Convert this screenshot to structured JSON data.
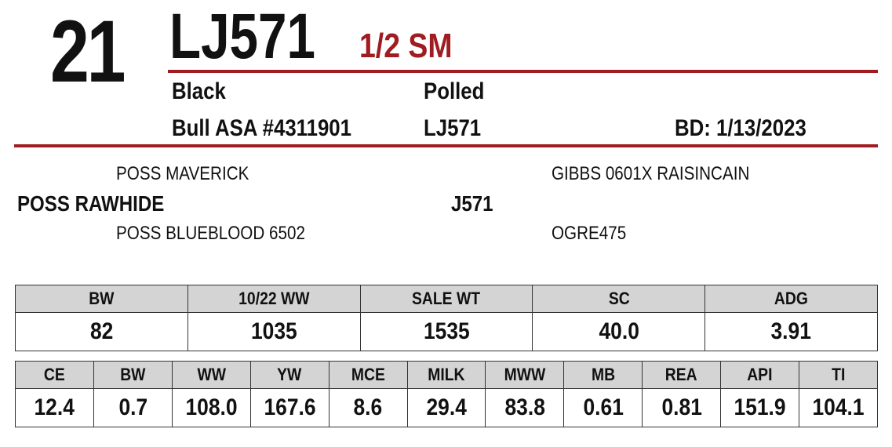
{
  "header": {
    "lot_number": "21",
    "tag": "LJ571",
    "breed_fraction": "1/2 SM"
  },
  "animal": {
    "color": "Black",
    "horn_status": "Polled",
    "registration": "Bull ASA #4311901",
    "tattoo": "LJ571",
    "birth_date": "BD: 1/13/2023"
  },
  "pedigree": {
    "sire": "POSS RAWHIDE",
    "sire_sire": "POSS MAVERICK",
    "sire_dam": "POSS BLUEBLOOD 6502",
    "dam": "J571",
    "dam_sire": "GIBBS 0601X RAISINCAIN",
    "dam_dam": "OGRE475"
  },
  "performance": {
    "headers": [
      "BW",
      "10/22 WW",
      "SALE WT",
      "SC",
      "ADG"
    ],
    "values": [
      "82",
      "1035",
      "1535",
      "40.0",
      "3.91"
    ]
  },
  "epds": {
    "headers": [
      "CE",
      "BW",
      "WW",
      "YW",
      "MCE",
      "MILK",
      "MWW",
      "MB",
      "REA",
      "API",
      "TI"
    ],
    "values": [
      "12.4",
      "0.7",
      "108.0",
      "167.6",
      "8.6",
      "29.4",
      "83.8",
      "0.61",
      "0.81",
      "151.9",
      "104.1"
    ]
  },
  "colors": {
    "accent": "#9e1c22",
    "header_fill": "#d4d4d4"
  }
}
